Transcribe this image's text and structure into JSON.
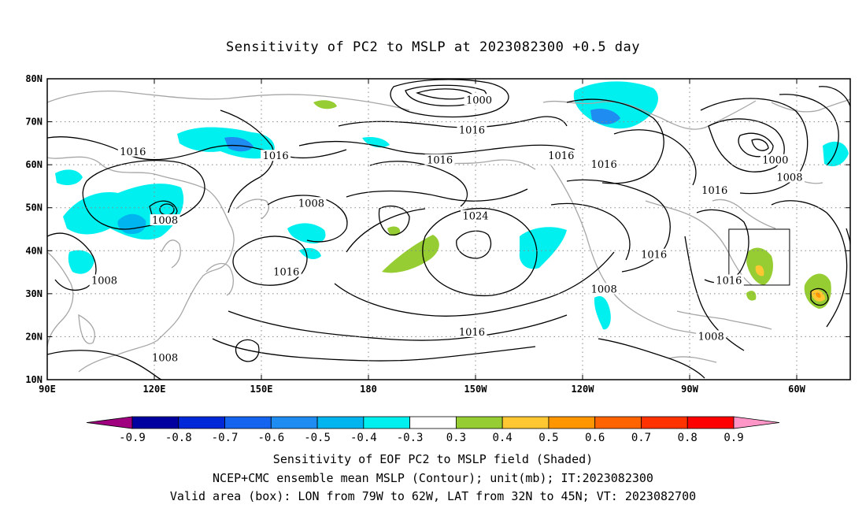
{
  "title": "Sensitivity of PC2 to MSLP at 2023082300 +0.5 day",
  "axes": {
    "lat_labels": [
      "10N",
      "20N",
      "30N",
      "40N",
      "50N",
      "60N",
      "70N",
      "80N"
    ],
    "lon_labels": [
      "90E",
      "120E",
      "150E",
      "180",
      "150W",
      "120W",
      "90W",
      "60W"
    ]
  },
  "contour_labels": [
    {
      "text": "1016",
      "lon": 114,
      "lat": 63
    },
    {
      "text": "1008",
      "lon": 123,
      "lat": 47
    },
    {
      "text": "1016",
      "lon": 154,
      "lat": 62
    },
    {
      "text": "1008",
      "lon": 164,
      "lat": 51
    },
    {
      "text": "1016",
      "lon": 157,
      "lat": 35
    },
    {
      "text": "1008",
      "lon": 106,
      "lat": 33
    },
    {
      "text": "1008",
      "lon": 123,
      "lat": 15
    },
    {
      "text": "1000",
      "lon": -149,
      "lat": 75
    },
    {
      "text": "1016",
      "lon": -151,
      "lat": 68
    },
    {
      "text": "1016",
      "lon": -160,
      "lat": 61
    },
    {
      "text": "1016",
      "lon": -126,
      "lat": 62
    },
    {
      "text": "1024",
      "lon": -150,
      "lat": 48
    },
    {
      "text": "1016",
      "lon": -114,
      "lat": 60
    },
    {
      "text": "1016",
      "lon": -83,
      "lat": 54
    },
    {
      "text": "1000",
      "lon": -66,
      "lat": 61
    },
    {
      "text": "1008",
      "lon": -62,
      "lat": 57
    },
    {
      "text": "1016",
      "lon": -100,
      "lat": 39
    },
    {
      "text": "1016",
      "lon": -79,
      "lat": 33
    },
    {
      "text": "1008",
      "lon": -114,
      "lat": 31
    },
    {
      "text": "1016",
      "lon": -151,
      "lat": 21
    },
    {
      "text": "1008",
      "lon": -84,
      "lat": 20
    }
  ],
  "valid_box": {
    "lon_min": -79,
    "lon_max": -62,
    "lat_min": 32,
    "lat_max": 45
  },
  "colorbar": {
    "colors": [
      "#a0007f",
      "#0000a0",
      "#0028d8",
      "#1464f0",
      "#1e8cf0",
      "#00b4f0",
      "#00f0f0",
      "#ffffff",
      "#96cd32",
      "#ffc832",
      "#ff9600",
      "#ff6400",
      "#ff3200",
      "#ff0000",
      "#ff96c8"
    ],
    "labels": [
      "-0.9",
      "-0.8",
      "-0.7",
      "-0.6",
      "-0.5",
      "-0.4",
      "-0.3",
      "0.3",
      "0.4",
      "0.5",
      "0.6",
      "0.7",
      "0.8",
      "0.9"
    ]
  },
  "caption": {
    "line1": "Sensitivity of EOF PC2 to MSLP field (Shaded)",
    "line2": "NCEP+CMC ensemble mean MSLP (Contour); unit(mb); IT:2023082300",
    "line3": "Valid area (box): LON from 79W to 62W, LAT from 32N to 45N; VT: 2023082700"
  }
}
